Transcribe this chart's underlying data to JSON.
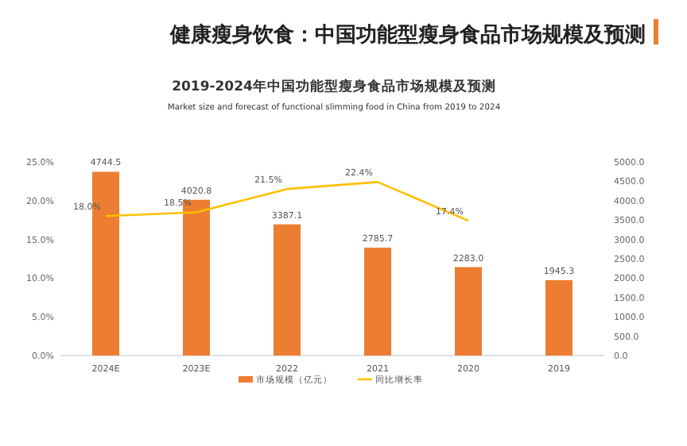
{
  "chart_data": {
    "type": "bar",
    "title": "健康瘦身饮食：中国功能型瘦身食品市场规模及预测",
    "subtitle": "2019-2024年中国功能型瘦身食品市场规模及预测",
    "annotations": [
      "Market size and forecast of functional slimming food in China from 2019 to 2024"
    ],
    "categories": [
      "2024E",
      "2023E",
      "2022",
      "2021",
      "2020",
      "2019"
    ],
    "series": [
      {
        "name": "市场规模（亿元）",
        "color": "#ed7d31",
        "values": [
          4744.5,
          4020.8,
          3387.1,
          2785.7,
          2283.0,
          1945.3
        ],
        "value_labels": [
          "4744.5",
          "4020.8",
          "3387.1",
          "2785.7",
          "2283.0",
          "1945.3"
        ]
      },
      {
        "name": "同比增长率",
        "type": "line",
        "axis": "y2",
        "color": "#ffc000",
        "values": [
          18.0,
          18.5,
          21.5,
          22.4,
          17.4,
          null
        ],
        "value_labels": [
          "18.0%",
          "18.5%",
          "21.5%",
          "22.4%",
          "17.4%",
          null
        ]
      }
    ],
    "ylim": [
      0,
      5000
    ],
    "yticks": [
      {
        "value": 0,
        "label": "0.0"
      },
      {
        "value": 500,
        "label": "500.0"
      },
      {
        "value": 1000,
        "label": "1000.0"
      },
      {
        "value": 1500,
        "label": "1500.0"
      },
      {
        "value": 2000,
        "label": "2000.0"
      },
      {
        "value": 2500,
        "label": "2500.0"
      },
      {
        "value": 3000,
        "label": "3000.0"
      },
      {
        "value": 3500,
        "label": "3500.0"
      },
      {
        "value": 4000,
        "label": "4000.0"
      },
      {
        "value": 4500,
        "label": "4500.0"
      },
      {
        "value": 5000,
        "label": "5000.0"
      }
    ],
    "y2lim": [
      0,
      25
    ],
    "y2ticks": [
      {
        "value": 0,
        "label": "0.0%"
      },
      {
        "value": 5,
        "label": "5.0%"
      },
      {
        "value": 10,
        "label": "10.0%"
      },
      {
        "value": 15,
        "label": "15.0%"
      },
      {
        "value": 20,
        "label": "20.0%"
      },
      {
        "value": 25,
        "label": "25.0%"
      }
    ],
    "legend": "bottom",
    "marker": "none",
    "line_style": "solid"
  }
}
